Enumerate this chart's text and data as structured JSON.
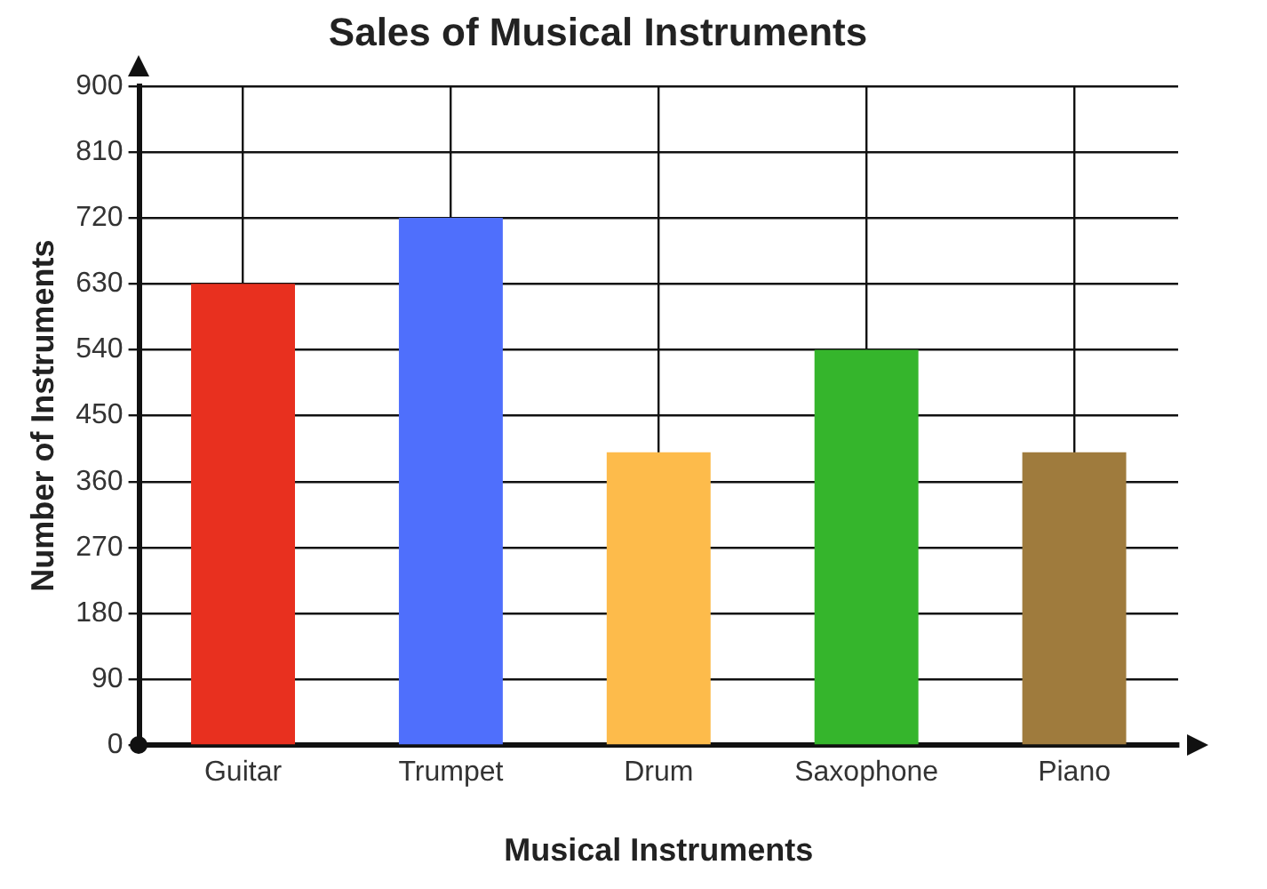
{
  "chart_data": {
    "type": "bar",
    "title": "Sales of Musical Instruments",
    "xlabel": "Musical Instruments",
    "ylabel": "Number of Instruments",
    "categories": [
      "Guitar",
      "Trumpet",
      "Drum",
      "Saxophone",
      "Piano"
    ],
    "values": [
      630,
      720,
      400,
      540,
      400
    ],
    "colors": [
      "#e8301f",
      "#4f6ffc",
      "#fdbb4b",
      "#35b52c",
      "#9f7b3d"
    ],
    "ylim": [
      0,
      900
    ],
    "yticks": [
      0,
      90,
      180,
      270,
      360,
      450,
      540,
      630,
      720,
      810,
      900
    ],
    "grid": true,
    "legend": false
  }
}
